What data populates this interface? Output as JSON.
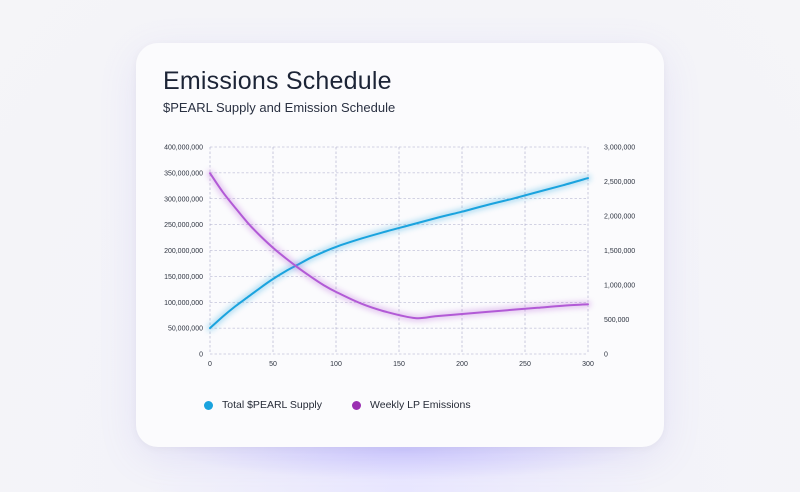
{
  "colors": {
    "supply": "#1aa3de",
    "emissions": "#b25ad6",
    "grid": "#a9a9c9"
  },
  "card": {
    "title": "Emissions Schedule",
    "subtitle": "$PEARL Supply and Emission Schedule"
  },
  "legend": [
    {
      "label": "Total $PEARL Supply",
      "color": "#1aa3de"
    },
    {
      "label": "Weekly LP Emissions",
      "color": "#9b2fb2"
    }
  ],
  "chart_data": {
    "type": "line",
    "title": "Emissions Schedule",
    "subtitle": "$PEARL Supply and Emission Schedule",
    "xlabel": "",
    "ylabel": "",
    "xlim": [
      0,
      300
    ],
    "x_ticks": [
      0,
      50,
      100,
      150,
      200,
      250,
      300
    ],
    "ylim_left": [
      0,
      400000000
    ],
    "y_ticks_left": [
      0,
      50000000,
      100000000,
      150000000,
      200000000,
      250000000,
      300000000,
      350000000,
      400000000
    ],
    "ylim_right": [
      0,
      3000000
    ],
    "y_ticks_right": [
      0,
      500000,
      1000000,
      1500000,
      2000000,
      2500000,
      3000000
    ],
    "grid": true,
    "legend_position": "bottom",
    "series": [
      {
        "name": "Total $PEARL Supply",
        "axis": "left",
        "x": [
          0,
          10,
          20,
          30,
          40,
          50,
          60,
          70,
          80,
          90,
          100,
          120,
          140,
          160,
          180,
          200,
          220,
          240,
          260,
          280,
          300
        ],
        "y": [
          50000000,
          72000000,
          92000000,
          110000000,
          128000000,
          145000000,
          160000000,
          173000000,
          186000000,
          197000000,
          207000000,
          223000000,
          237000000,
          250000000,
          263000000,
          275000000,
          288000000,
          300000000,
          313000000,
          326000000,
          340000000
        ]
      },
      {
        "name": "Weekly LP Emissions",
        "axis": "right",
        "x": [
          0,
          10,
          20,
          30,
          40,
          50,
          60,
          70,
          80,
          90,
          100,
          120,
          140,
          163,
          180,
          200,
          220,
          240,
          260,
          280,
          300
        ],
        "y": [
          2620000,
          2350000,
          2120000,
          1900000,
          1710000,
          1540000,
          1390000,
          1250000,
          1120000,
          1000000,
          900000,
          730000,
          610000,
          520000,
          550000,
          580000,
          610000,
          640000,
          670000,
          700000,
          720000
        ]
      }
    ]
  }
}
